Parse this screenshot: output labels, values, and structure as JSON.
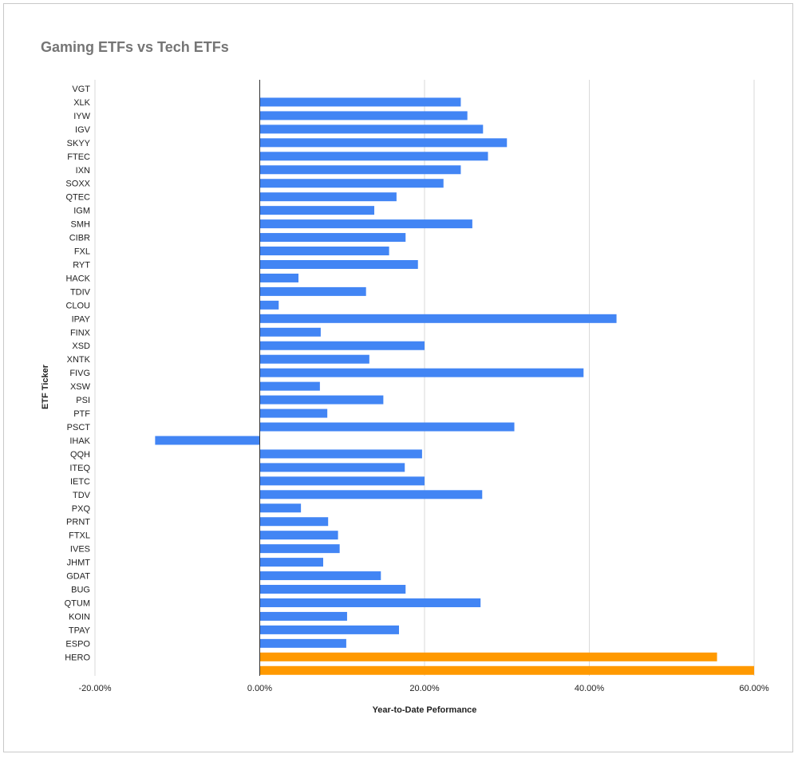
{
  "chart_data": {
    "type": "bar",
    "orientation": "horizontal",
    "title": "Gaming ETFs vs Tech ETFs",
    "xlabel": "Year-to-Date Peformance",
    "ylabel": "ETF Ticker",
    "xlim": [
      -0.2,
      0.6
    ],
    "xticks": [
      -0.2,
      0,
      0.2,
      0.4,
      0.6
    ],
    "xtick_labels": [
      "-20.00%",
      "0.00%",
      "20.00%",
      "40.00%",
      "60.00%"
    ],
    "grid": true,
    "legend": "none",
    "colors": {
      "tech": "#4285f4",
      "gaming": "#ff9900"
    },
    "categories": [
      "VGT",
      "XLK",
      "IYW",
      "IGV",
      "SKYY",
      "FTEC",
      "IXN",
      "SOXX",
      "QTEC",
      "IGM",
      "SMH",
      "CIBR",
      "FXL",
      "RYT",
      "HACK",
      "TDIV",
      "CLOU",
      "IPAY",
      "FINX",
      "XSD",
      "XNTK",
      "FIVG",
      "XSW",
      "PSI",
      "PTF",
      "PSCT",
      "IHAK",
      "QQH",
      "ITEQ",
      "IETC",
      "TDV",
      "PXQ",
      "PRNT",
      "FTXL",
      "IVES",
      "JHMT",
      "GDAT",
      "BUG",
      "QTUM",
      "KOIN",
      "TPAY",
      "ESPO",
      "HERO"
    ],
    "series": [
      {
        "values": [
          0.244,
          0.252,
          0.271,
          0.3,
          0.277,
          0.244,
          0.223,
          0.166,
          0.139,
          0.258,
          0.177,
          0.157,
          0.192,
          0.047,
          0.129,
          0.023,
          0.433,
          0.074,
          0.2,
          0.133,
          0.393,
          0.073,
          0.15,
          0.082,
          0.309,
          -0.127,
          0.197,
          0.176,
          0.2,
          0.27,
          0.05,
          0.083,
          0.095,
          0.097,
          0.077,
          0.147,
          0.177,
          0.268,
          0.106,
          0.169,
          0.105,
          0.555,
          0.6
        ],
        "colors": [
          "#4285f4",
          "#4285f4",
          "#4285f4",
          "#4285f4",
          "#4285f4",
          "#4285f4",
          "#4285f4",
          "#4285f4",
          "#4285f4",
          "#4285f4",
          "#4285f4",
          "#4285f4",
          "#4285f4",
          "#4285f4",
          "#4285f4",
          "#4285f4",
          "#4285f4",
          "#4285f4",
          "#4285f4",
          "#4285f4",
          "#4285f4",
          "#4285f4",
          "#4285f4",
          "#4285f4",
          "#4285f4",
          "#4285f4",
          "#4285f4",
          "#4285f4",
          "#4285f4",
          "#4285f4",
          "#4285f4",
          "#4285f4",
          "#4285f4",
          "#4285f4",
          "#4285f4",
          "#4285f4",
          "#4285f4",
          "#4285f4",
          "#4285f4",
          "#4285f4",
          "#4285f4",
          "#ff9900",
          "#ff9900"
        ]
      }
    ]
  }
}
